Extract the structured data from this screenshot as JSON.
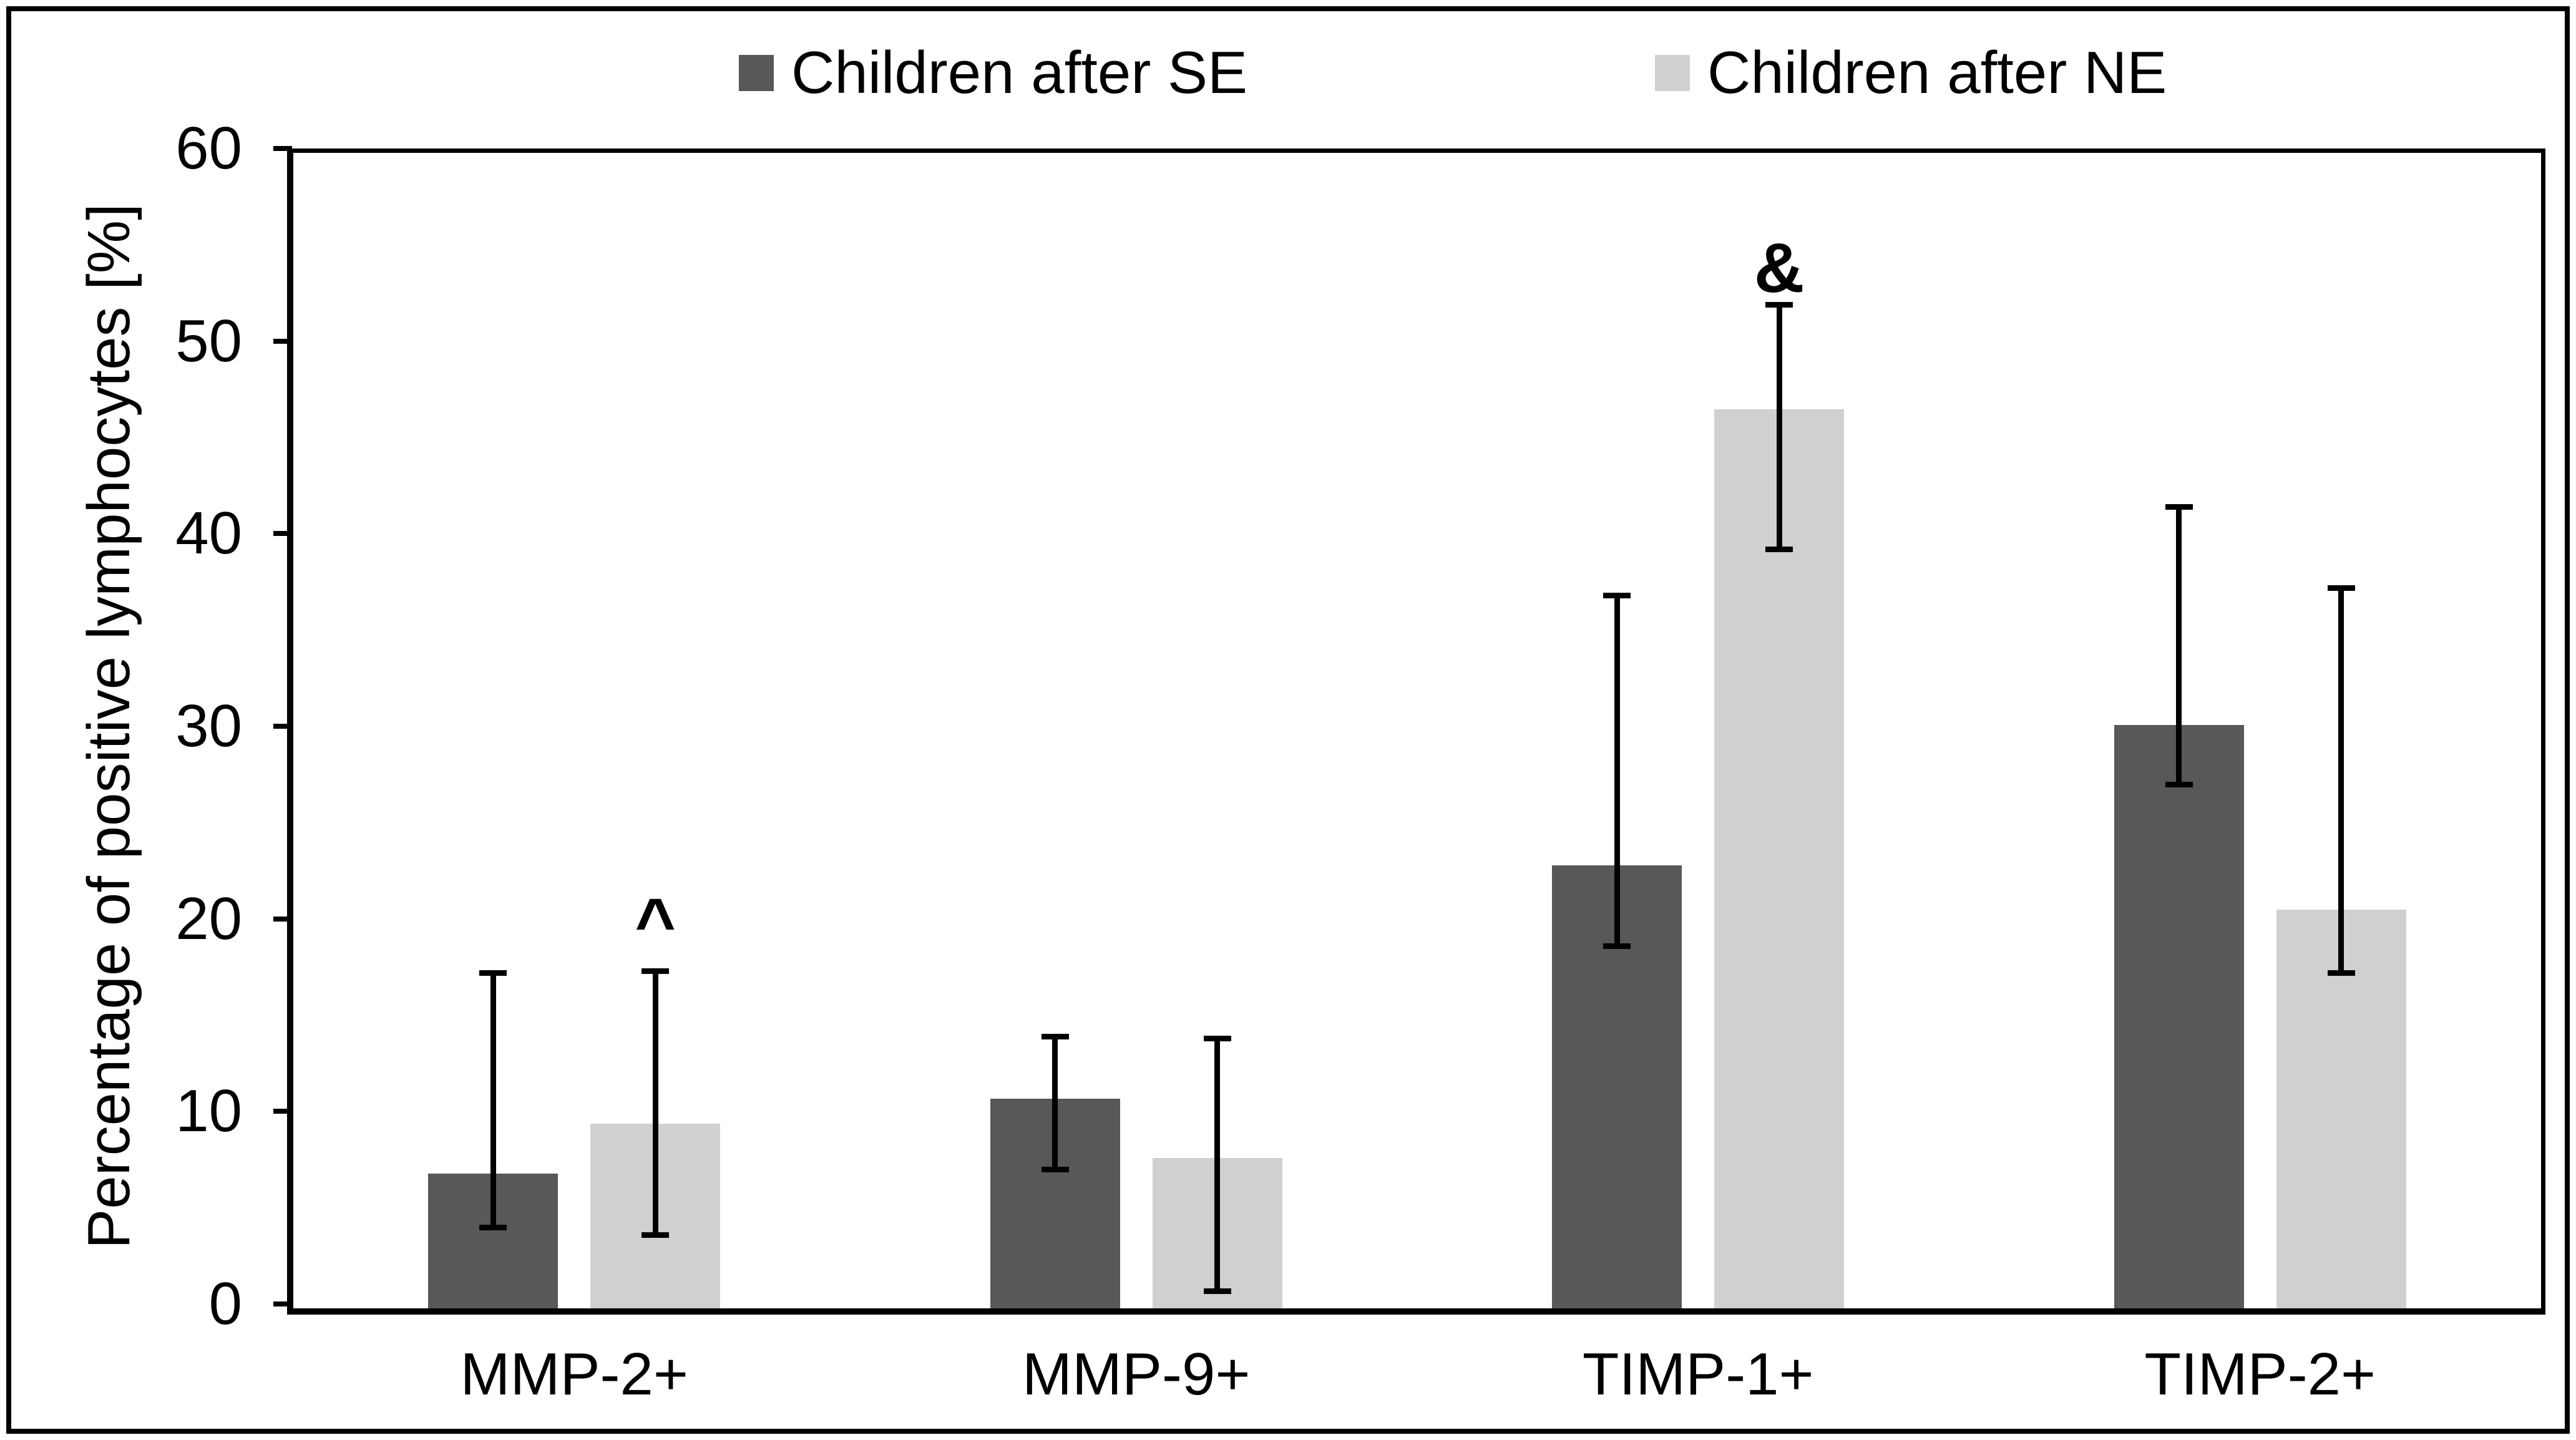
{
  "chart_data": {
    "type": "bar",
    "title": "",
    "categories": [
      "MMP-2+",
      "MMP-9+",
      "TIMP-1+",
      "TIMP-2+"
    ],
    "series": [
      {
        "name": "Children after SE",
        "color": "#585858",
        "values": [
          7.0,
          10.9,
          23.0,
          30.3
        ],
        "error_low": [
          4.2,
          7.2,
          18.8,
          27.2
        ],
        "error_high": [
          17.4,
          14.1,
          37.0,
          41.6
        ]
      },
      {
        "name": "Children after NE",
        "color": "#d0d0d0",
        "values": [
          9.6,
          7.8,
          46.7,
          20.7
        ],
        "error_low": [
          3.8,
          0.9,
          39.4,
          17.4
        ],
        "error_high": [
          17.5,
          14.0,
          52.1,
          37.4
        ]
      }
    ],
    "annotations": [
      {
        "text": "^",
        "category": "MMP-2+",
        "series": "Children after NE",
        "y": 20.0
      },
      {
        "text": "&",
        "category": "TIMP-1+",
        "series": "Children after NE",
        "y": 54.0
      }
    ],
    "xlabel": "",
    "ylabel": "Percentage of positive lymphocytes [%]",
    "ylim": [
      0,
      60
    ],
    "yticks": [
      0,
      10,
      20,
      30,
      40,
      50,
      60
    ],
    "legend_position": "top",
    "grid": false,
    "error_bar_color": "#000000",
    "axis_color": "#000000"
  }
}
